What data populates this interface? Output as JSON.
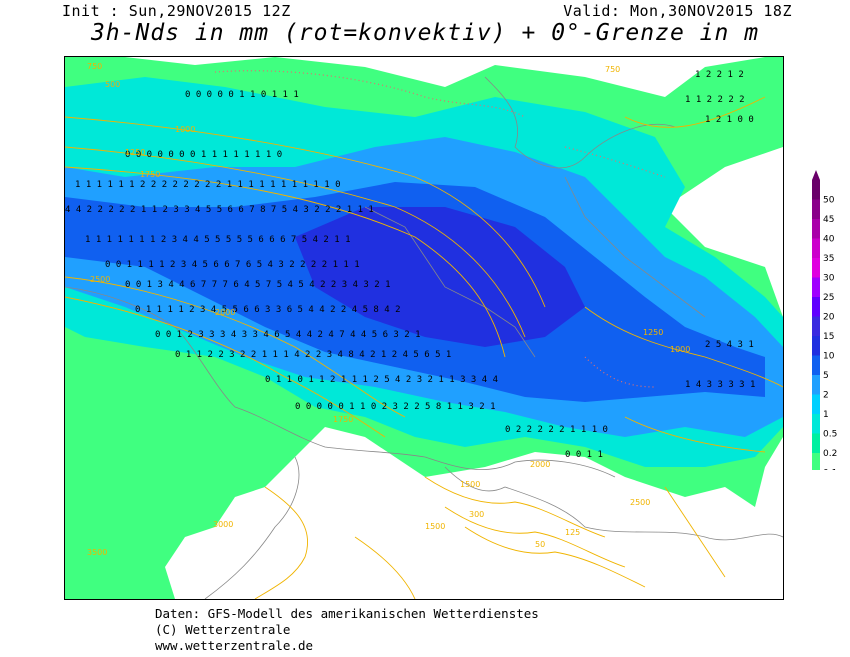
{
  "header": {
    "init": "Init : Sun,29NOV2015 12Z",
    "valid": "Valid: Mon,30NOV2015 18Z",
    "title": "3h-Nds in mm (rot=konvektiv) + 0°-Grenze in m"
  },
  "map": {
    "colors": {
      "land": "#ffffff",
      "coast": "#888888",
      "isoline": "#f0b400",
      "convective_dot": "#e07070",
      "value_text": "#000000"
    },
    "isoline_labels": [
      "750",
      "500",
      "1000",
      "1250",
      "1750",
      "2500",
      "2000",
      "3500",
      "3000",
      "1500",
      "300",
      "125",
      "50",
      "1000",
      "2500",
      "2000",
      "750",
      "1750",
      "1250",
      "1500"
    ],
    "precip_values_sample": [
      "0",
      "1",
      "2",
      "3",
      "4",
      "5",
      "6",
      "7",
      "8"
    ]
  },
  "legend": {
    "levels": [
      {
        "label": "50",
        "color": "#6a006a"
      },
      {
        "label": "45",
        "color": "#8a008a"
      },
      {
        "label": "40",
        "color": "#aa00aa"
      },
      {
        "label": "35",
        "color": "#cc00cc"
      },
      {
        "label": "30",
        "color": "#e000e0"
      },
      {
        "label": "25",
        "color": "#a000ff"
      },
      {
        "label": "20",
        "color": "#6000ff"
      },
      {
        "label": "15",
        "color": "#3a2ae0"
      },
      {
        "label": "10",
        "color": "#2030e0"
      },
      {
        "label": "5",
        "color": "#1060f0"
      },
      {
        "label": "2",
        "color": "#20a0ff"
      },
      {
        "label": "1",
        "color": "#00d0ff"
      },
      {
        "label": "0.5",
        "color": "#00e8d8"
      },
      {
        "label": "0.2",
        "color": "#00f0a0"
      },
      {
        "label": "0.1",
        "color": "#40ff80"
      }
    ]
  },
  "footer": {
    "line1": "Daten: GFS-Modell des amerikanischen Wetterdienstes",
    "line2": "(C) Wetterzentrale",
    "line3": "www.wetterzentrale.de"
  }
}
